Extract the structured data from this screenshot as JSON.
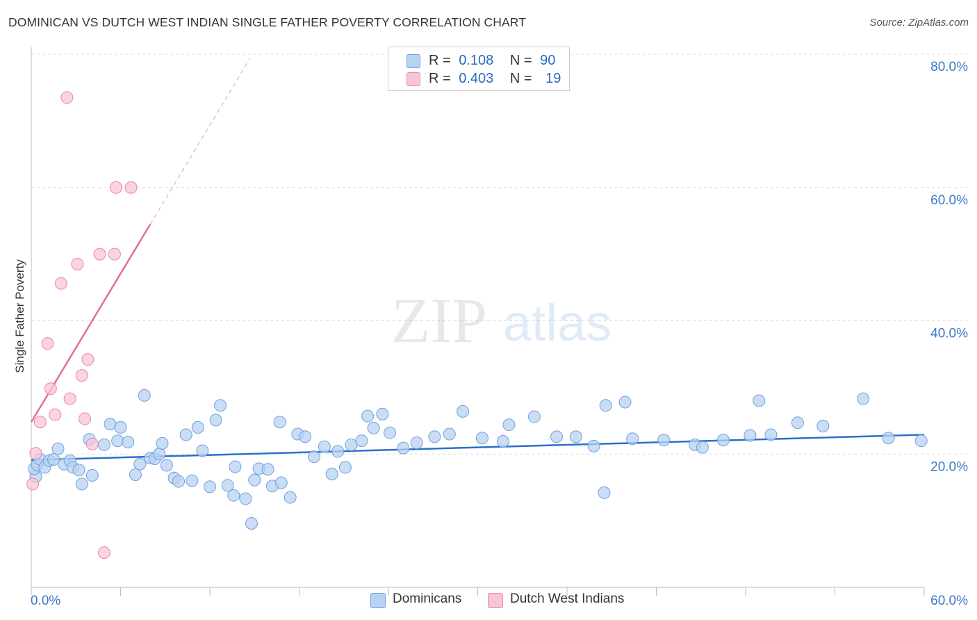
{
  "title": "DOMINICAN VS DUTCH WEST INDIAN SINGLE FATHER POVERTY CORRELATION CHART",
  "source": "Source: ZipAtlas.com",
  "watermark": {
    "zip": "ZIP",
    "atlas": "atlas"
  },
  "legend": {
    "r_label": "R =",
    "n_label": "N =",
    "rows": [
      {
        "r": "0.108",
        "n": "90",
        "color": "#a9c8f0"
      },
      {
        "r": "0.403",
        "n": "19",
        "color": "#f8bcd0"
      }
    ]
  },
  "bottom_legend": [
    "Dominicans",
    "Dutch West Indians"
  ],
  "chart_data": {
    "type": "scatter",
    "title": "DOMINICAN VS DUTCH WEST INDIAN SINGLE FATHER POVERTY CORRELATION CHART",
    "xlabel": "",
    "ylabel": "Single Father Poverty",
    "xlim": [
      0,
      60
    ],
    "ylim": [
      0,
      80
    ],
    "x_tick_labels": [
      "0.0%",
      "60.0%"
    ],
    "y_tick_labels": [
      "20.0%",
      "40.0%",
      "60.0%",
      "80.0%"
    ],
    "y_ticks": [
      20,
      40,
      60,
      80
    ],
    "grid": true,
    "legend_position": "top-center",
    "series": [
      {
        "name": "Dominicans",
        "color": "#6fa1dd",
        "fill": "#b8d2f2",
        "points": [
          [
            0.3,
            16.6
          ],
          [
            0.2,
            17.8
          ],
          [
            0.4,
            18.4
          ],
          [
            0.6,
            19.2
          ],
          [
            0.9,
            18.0
          ],
          [
            1.2,
            19.0
          ],
          [
            1.5,
            19.2
          ],
          [
            1.8,
            20.8
          ],
          [
            2.2,
            18.5
          ],
          [
            2.6,
            19.0
          ],
          [
            2.8,
            18.0
          ],
          [
            3.2,
            17.6
          ],
          [
            3.4,
            15.5
          ],
          [
            3.9,
            22.2
          ],
          [
            4.1,
            16.8
          ],
          [
            4.9,
            21.4
          ],
          [
            5.3,
            24.5
          ],
          [
            5.8,
            22.0
          ],
          [
            6.0,
            24.0
          ],
          [
            6.5,
            21.8
          ],
          [
            7.0,
            16.9
          ],
          [
            7.3,
            18.5
          ],
          [
            7.6,
            28.8
          ],
          [
            8.0,
            19.4
          ],
          [
            8.3,
            19.3
          ],
          [
            8.6,
            20.0
          ],
          [
            8.8,
            21.6
          ],
          [
            9.1,
            18.3
          ],
          [
            9.6,
            16.4
          ],
          [
            9.9,
            15.9
          ],
          [
            10.4,
            22.9
          ],
          [
            10.8,
            16.0
          ],
          [
            11.2,
            24.0
          ],
          [
            11.5,
            20.5
          ],
          [
            12.0,
            15.1
          ],
          [
            12.4,
            25.1
          ],
          [
            12.7,
            27.3
          ],
          [
            13.2,
            15.3
          ],
          [
            13.6,
            13.8
          ],
          [
            13.7,
            18.1
          ],
          [
            14.4,
            13.3
          ],
          [
            14.8,
            9.6
          ],
          [
            15.0,
            16.1
          ],
          [
            15.3,
            17.8
          ],
          [
            15.9,
            17.7
          ],
          [
            16.2,
            15.2
          ],
          [
            16.7,
            24.8
          ],
          [
            16.8,
            15.7
          ],
          [
            17.4,
            13.5
          ],
          [
            17.9,
            23.0
          ],
          [
            18.4,
            22.6
          ],
          [
            19.0,
            19.6
          ],
          [
            19.7,
            21.1
          ],
          [
            20.2,
            17.0
          ],
          [
            20.6,
            20.4
          ],
          [
            21.1,
            18.0
          ],
          [
            21.5,
            21.4
          ],
          [
            22.2,
            22.0
          ],
          [
            22.6,
            25.7
          ],
          [
            23.0,
            23.9
          ],
          [
            23.6,
            26.0
          ],
          [
            24.1,
            23.2
          ],
          [
            25.0,
            20.9
          ],
          [
            25.9,
            21.7
          ],
          [
            27.1,
            22.6
          ],
          [
            28.1,
            23.0
          ],
          [
            29.0,
            26.4
          ],
          [
            30.3,
            22.4
          ],
          [
            31.7,
            21.9
          ],
          [
            32.1,
            24.4
          ],
          [
            33.8,
            25.6
          ],
          [
            35.3,
            22.6
          ],
          [
            36.6,
            22.6
          ],
          [
            37.8,
            21.2
          ],
          [
            38.5,
            14.2
          ],
          [
            38.6,
            27.3
          ],
          [
            39.9,
            27.8
          ],
          [
            40.4,
            22.3
          ],
          [
            42.5,
            22.1
          ],
          [
            44.6,
            21.4
          ],
          [
            45.1,
            21.0
          ],
          [
            46.5,
            22.1
          ],
          [
            48.3,
            22.8
          ],
          [
            48.9,
            28.0
          ],
          [
            49.7,
            22.9
          ],
          [
            51.5,
            24.7
          ],
          [
            53.2,
            24.2
          ],
          [
            55.9,
            28.3
          ],
          [
            57.6,
            22.4
          ],
          [
            59.8,
            22.0
          ]
        ],
        "trend": [
          [
            0,
            19.1
          ],
          [
            60,
            22.9
          ]
        ]
      },
      {
        "name": "Dutch West Indians",
        "color": "#e986a8",
        "fill": "#f8c5d6",
        "points": [
          [
            0.1,
            15.5
          ],
          [
            0.3,
            20.1
          ],
          [
            0.6,
            24.8
          ],
          [
            1.1,
            36.6
          ],
          [
            1.3,
            29.8
          ],
          [
            1.6,
            25.9
          ],
          [
            2.0,
            45.6
          ],
          [
            2.6,
            28.3
          ],
          [
            3.1,
            48.5
          ],
          [
            3.4,
            31.8
          ],
          [
            3.6,
            25.3
          ],
          [
            3.8,
            34.2
          ],
          [
            4.1,
            21.5
          ],
          [
            4.6,
            50.0
          ],
          [
            4.9,
            5.2
          ],
          [
            5.6,
            50.0
          ],
          [
            5.7,
            60.0
          ],
          [
            6.7,
            60.0
          ],
          [
            2.4,
            73.5
          ]
        ],
        "trend": [
          [
            0,
            24.8
          ],
          [
            8,
            54.5
          ]
        ]
      }
    ]
  }
}
